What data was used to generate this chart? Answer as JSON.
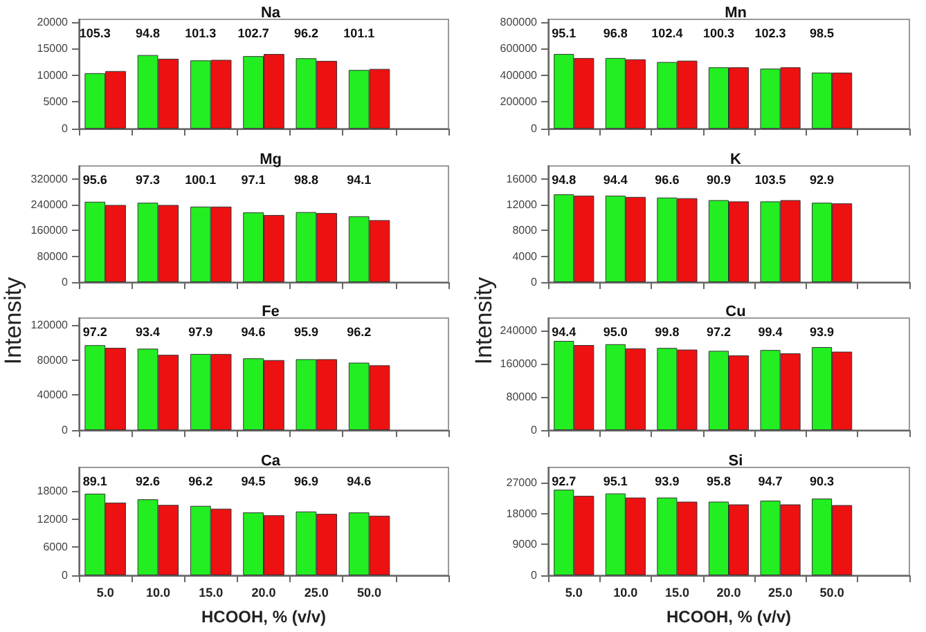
{
  "chart_data": [
    {
      "type": "bar",
      "title": "Na",
      "categories": [
        "5.0",
        "10.0",
        "15.0",
        "20.0",
        "25.0",
        "50.0",
        null
      ],
      "tick_labels": "y",
      "grid": false,
      "ylim": [
        0,
        20500
      ],
      "yticks": [
        0,
        5000,
        10000,
        15000,
        20000
      ],
      "series": [
        {
          "color": "#22ee22",
          "values": [
            10400,
            13800,
            12800,
            13600,
            13200,
            11000,
            null
          ]
        },
        {
          "color": "#ee1111",
          "values": [
            10800,
            13100,
            12900,
            14000,
            12700,
            11200,
            null
          ]
        }
      ],
      "annotations": [
        "105.3",
        "94.8",
        "101.3",
        "102.7",
        "96.2",
        "101.1"
      ]
    },
    {
      "type": "bar",
      "title": "Mn",
      "categories": [
        "5.0",
        "10.0",
        "15.0",
        "20.0",
        "25.0",
        "50.0",
        null
      ],
      "tick_labels": "y",
      "grid": false,
      "ylim": [
        0,
        820000
      ],
      "yticks": [
        0,
        200000,
        400000,
        600000,
        800000
      ],
      "series": [
        {
          "color": "#22ee22",
          "values": [
            560000,
            530000,
            500000,
            460000,
            450000,
            420000,
            null
          ]
        },
        {
          "color": "#ee1111",
          "values": [
            530000,
            520000,
            510000,
            460000,
            460000,
            420000,
            null
          ]
        }
      ],
      "annotations": [
        "95.1",
        "96.8",
        "102.4",
        "100.3",
        "102.3",
        "98.5"
      ]
    },
    {
      "type": "bar",
      "title": "Mg",
      "categories": [
        "5.0",
        "10.0",
        "15.0",
        "20.0",
        "25.0",
        "50.0",
        null
      ],
      "tick_labels": "y",
      "grid": false,
      "ylim": [
        0,
        360000
      ],
      "yticks": [
        0,
        80000,
        160000,
        240000,
        320000
      ],
      "series": [
        {
          "color": "#22ee22",
          "values": [
            249000,
            246000,
            234000,
            216000,
            217000,
            204000,
            null
          ]
        },
        {
          "color": "#ee1111",
          "values": [
            239000,
            239000,
            234000,
            208000,
            214000,
            192000,
            null
          ]
        }
      ],
      "annotations": [
        "95.6",
        "97.3",
        "100.1",
        "97.1",
        "98.8",
        "94.1"
      ]
    },
    {
      "type": "bar",
      "title": "K",
      "categories": [
        "5.0",
        "10.0",
        "15.0",
        "20.0",
        "25.0",
        "50.0",
        null
      ],
      "tick_labels": "y",
      "grid": false,
      "ylim": [
        0,
        18000
      ],
      "yticks": [
        0,
        4000,
        8000,
        12000,
        16000
      ],
      "series": [
        {
          "color": "#22ee22",
          "values": [
            13600,
            13400,
            13100,
            12700,
            12500,
            12300,
            null
          ]
        },
        {
          "color": "#ee1111",
          "values": [
            13400,
            13200,
            13000,
            12500,
            12700,
            12200,
            null
          ]
        }
      ],
      "annotations": [
        "94.8",
        "94.4",
        "96.6",
        "90.9",
        "103.5",
        "92.9"
      ]
    },
    {
      "type": "bar",
      "title": "Fe",
      "ylabel": "Intensity",
      "categories": [
        "5.0",
        "10.0",
        "15.0",
        "20.0",
        "25.0",
        "50.0",
        null
      ],
      "tick_labels": "y",
      "grid": false,
      "ylim": [
        0,
        128000
      ],
      "yticks": [
        0,
        40000,
        80000,
        120000
      ],
      "series": [
        {
          "color": "#22ee22",
          "values": [
            97000,
            93000,
            87000,
            82000,
            81000,
            77000,
            null
          ]
        },
        {
          "color": "#ee1111",
          "values": [
            94000,
            86000,
            87000,
            80000,
            81000,
            74000,
            null
          ]
        }
      ],
      "annotations": [
        "97.2",
        "93.4",
        "97.9",
        "94.6",
        "95.9",
        "96.2"
      ]
    },
    {
      "type": "bar",
      "title": "Cu",
      "ylabel": "Intensity",
      "categories": [
        "5.0",
        "10.0",
        "15.0",
        "20.0",
        "25.0",
        "50.0",
        null
      ],
      "tick_labels": "y",
      "grid": false,
      "ylim": [
        0,
        270000
      ],
      "yticks": [
        0,
        80000,
        160000,
        240000
      ],
      "series": [
        {
          "color": "#22ee22",
          "values": [
            215000,
            207000,
            198000,
            191000,
            193000,
            200000,
            null
          ]
        },
        {
          "color": "#ee1111",
          "values": [
            205000,
            197000,
            194000,
            180000,
            185000,
            189000,
            null
          ]
        }
      ],
      "annotations": [
        "94.4",
        "95.0",
        "99.8",
        "97.2",
        "99.4",
        "93.9"
      ]
    },
    {
      "type": "bar",
      "title": "Ca",
      "xlabel": "HCOOH, % (v/v)",
      "categories": [
        "5.0",
        "10.0",
        "15.0",
        "20.0",
        "25.0",
        "50.0",
        null
      ],
      "grid": false,
      "ylim": [
        0,
        23000
      ],
      "yticks": [
        0,
        6000,
        12000,
        18000
      ],
      "series": [
        {
          "color": "#22ee22",
          "values": [
            17400,
            16200,
            14800,
            13400,
            13600,
            13400,
            null
          ]
        },
        {
          "color": "#ee1111",
          "values": [
            15500,
            15000,
            14200,
            12800,
            13100,
            12700,
            null
          ]
        }
      ],
      "annotations": [
        "89.1",
        "92.6",
        "96.2",
        "94.5",
        "96.9",
        "94.6"
      ]
    },
    {
      "type": "bar",
      "title": "Si",
      "xlabel": "HCOOH, % (v/v)",
      "categories": [
        "5.0",
        "10.0",
        "15.0",
        "20.0",
        "25.0",
        "50.0",
        null
      ],
      "grid": false,
      "ylim": [
        0,
        31500
      ],
      "yticks": [
        0,
        9000,
        18000,
        27000
      ],
      "series": [
        {
          "color": "#22ee22",
          "values": [
            25000,
            23900,
            22700,
            21500,
            21800,
            22400,
            null
          ]
        },
        {
          "color": "#ee1111",
          "values": [
            23200,
            22700,
            21500,
            20700,
            20700,
            20500,
            null
          ]
        }
      ],
      "annotations": [
        "92.7",
        "95.1",
        "93.9",
        "95.8",
        "94.7",
        "90.3"
      ]
    }
  ]
}
